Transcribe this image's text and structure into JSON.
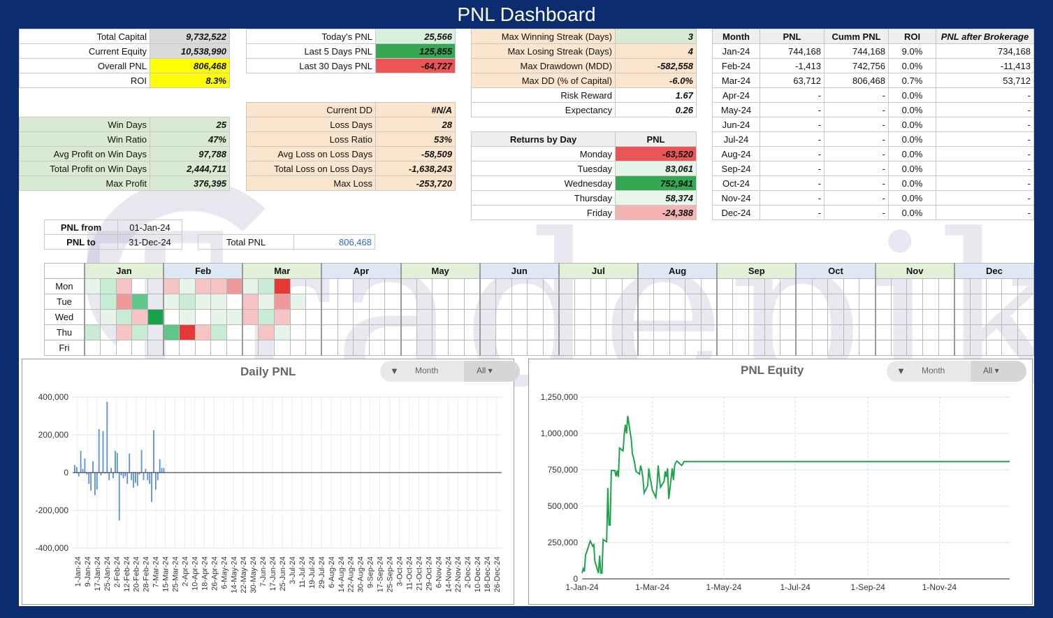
{
  "title": "PNL Dashboard",
  "capital_table": [
    {
      "label": "Total Capital",
      "value": "9,732,522"
    },
    {
      "label": "Current Equity",
      "value": "10,538,990"
    },
    {
      "label": "Overall PNL",
      "value": "806,468"
    },
    {
      "label": "ROI",
      "value": "8.3%"
    }
  ],
  "recent_table": [
    {
      "label": "Today's PNL",
      "value": "25,566"
    },
    {
      "label": "Last 5 Days PNL",
      "value": "125,855"
    },
    {
      "label": "Last 30 Days PNL",
      "value": "-64,727"
    }
  ],
  "streak_table": [
    {
      "label": "Max Winning Streak (Days)",
      "value": "3"
    },
    {
      "label": "Max Losing Streak (Days)",
      "value": "4"
    },
    {
      "label": "Max Drawdown (MDD)",
      "value": "-582,558"
    },
    {
      "label": "Max DD (% of Capital)",
      "value": "-6.0%"
    },
    {
      "label": "Risk Reward",
      "value": "1.67"
    },
    {
      "label": "Expectancy",
      "value": "0.26"
    }
  ],
  "monthly_table": {
    "headers": [
      "Month",
      "PNL",
      "Cumm PNL",
      "ROI",
      "PNL after Brokerage"
    ],
    "rows": [
      [
        "Jan-24",
        "744,168",
        "744,168",
        "9.0%",
        "734,168"
      ],
      [
        "Feb-24",
        "-1,413",
        "742,756",
        "0.0%",
        "-11,413"
      ],
      [
        "Mar-24",
        "63,712",
        "806,468",
        "0.7%",
        "53,712"
      ],
      [
        "Apr-24",
        "-",
        "-",
        "0.0%",
        "-"
      ],
      [
        "May-24",
        "-",
        "-",
        "0.0%",
        "-"
      ],
      [
        "Jun-24",
        "-",
        "-",
        "0.0%",
        "-"
      ],
      [
        "Jul-24",
        "-",
        "-",
        "0.0%",
        "-"
      ],
      [
        "Aug-24",
        "-",
        "-",
        "0.0%",
        "-"
      ],
      [
        "Sep-24",
        "-",
        "-",
        "0.0%",
        "-"
      ],
      [
        "Oct-24",
        "-",
        "-",
        "0.0%",
        "-"
      ],
      [
        "Nov-24",
        "-",
        "-",
        "0.0%",
        "-"
      ],
      [
        "Dec-24",
        "-",
        "-",
        "0.0%",
        "-"
      ]
    ]
  },
  "win_table": [
    {
      "label": "Win Days",
      "value": "25"
    },
    {
      "label": "Win Ratio",
      "value": "47%"
    },
    {
      "label": "Avg Profit on Win Days",
      "value": "97,788"
    },
    {
      "label": "Total Profit on Win Days",
      "value": "2,444,711"
    },
    {
      "label": "Max Profit",
      "value": "376,395"
    }
  ],
  "loss_table": [
    {
      "label": "Current DD",
      "value": "#N/A"
    },
    {
      "label": "Loss Days",
      "value": "28"
    },
    {
      "label": "Loss Ratio",
      "value": "53%"
    },
    {
      "label": "Avg Loss on Loss Days",
      "value": "-58,509"
    },
    {
      "label": "Total Loss on Loss Days",
      "value": "-1,638,243"
    },
    {
      "label": "Max Loss",
      "value": "-253,720"
    }
  ],
  "returns_by_day": {
    "header_label": "Returns by Day",
    "header_value": "PNL",
    "rows": [
      {
        "label": "Monday",
        "value": "-63,520"
      },
      {
        "label": "Tuesday",
        "value": "83,061"
      },
      {
        "label": "Wednesday",
        "value": "752,941"
      },
      {
        "label": "Thursday",
        "value": "58,374"
      },
      {
        "label": "Friday",
        "value": "-24,388"
      }
    ]
  },
  "range": {
    "from_label": "PNL from",
    "from_value": "01-Jan-24",
    "to_label": "PNL to",
    "to_value": "31-Dec-24",
    "total_label": "Total PNL",
    "total_value": "806,468"
  },
  "heatmap": {
    "months": [
      "Jan",
      "Feb",
      "Mar",
      "Apr",
      "May",
      "Jun",
      "Jul",
      "Aug",
      "Sep",
      "Oct",
      "Nov",
      "Dec"
    ],
    "days": [
      "Mon",
      "Tue",
      "Wed",
      "Thu",
      "Fri"
    ],
    "colors": {
      "strong_green": "#16a34a",
      "green": "#5fc78a",
      "light_green": "#c8ebd3",
      "pale_green": "#e6f4ea",
      "light_red": "#f6c4c4",
      "red": "#ef9a9a",
      "strong_red": "#e53935"
    },
    "cells": {
      "Jan": [
        [
          "pale_green",
          "light_green",
          "light_red",
          "",
          ""
        ],
        [
          "",
          "light_green",
          "red",
          "green",
          ""
        ],
        [
          "",
          "pale_green",
          "light_green",
          "light_red",
          "strong_green"
        ],
        [
          "light_green",
          "",
          "light_red",
          "light_green",
          ""
        ],
        [
          "",
          "",
          "",
          "",
          ""
        ]
      ],
      "Feb": [
        [
          "light_red",
          "pale_green",
          "light_red",
          "light_red",
          "red"
        ],
        [
          "pale_green",
          "light_green",
          "pale_green",
          "pale_green",
          ""
        ],
        [
          "",
          "pale_green",
          "",
          "pale_green",
          "pale_green"
        ],
        [
          "green",
          "strong_red",
          "light_red",
          "light_green",
          ""
        ],
        [
          "",
          "",
          "",
          "",
          ""
        ]
      ],
      "Mar": [
        [
          "pale_green",
          "light_green",
          "strong_red",
          ""
        ],
        [
          "light_red",
          "pale_green",
          "red",
          "pale_green"
        ],
        [
          "light_red",
          "light_green",
          "light_red",
          ""
        ],
        [
          "",
          "light_red",
          "pale_green",
          ""
        ],
        [
          "",
          "",
          "",
          ""
        ]
      ]
    }
  },
  "daily_chart": {
    "title": "Daily PNL",
    "filter_label": "Month",
    "filter_value": "All",
    "filter_icon": "filter-icon",
    "chart_data": {
      "type": "bar",
      "title": "Daily PNL",
      "ylim": [
        -400000,
        400000
      ],
      "yticks": [
        "400,000",
        "200,000",
        "0",
        "-200,000",
        "-400,000"
      ],
      "xticks": [
        "1-Jan-24",
        "9-Jan-24",
        "17-Jan-24",
        "25-Jan-24",
        "2-Feb-24",
        "12-Feb-24",
        "20-Feb-24",
        "28-Feb-24",
        "7-Mar-24",
        "15-Mar-24",
        "25-Mar-24",
        "2-Apr-24",
        "10-Apr-24",
        "18-Apr-24",
        "26-Apr-24",
        "6-May-24",
        "14-May-24",
        "22-May-24",
        "30-May-24",
        "7-Jun-24",
        "17-Jun-24",
        "25-Jun-24",
        "3-Jul-24",
        "11-Jul-24",
        "19-Jul-24",
        "29-Jul-24",
        "6-Aug-24",
        "14-Aug-24",
        "22-Aug-24",
        "30-Aug-24",
        "9-Sep-24",
        "17-Sep-24",
        "25-Sep-24",
        "3-Oct-24",
        "11-Oct-24",
        "21-Oct-24",
        "29-Oct-24",
        "6-Nov-24",
        "14-Nov-24",
        "22-Nov-24",
        "2-Dec-24",
        "10-Dec-24",
        "18-Dec-24",
        "26-Dec-24"
      ],
      "values": [
        40000,
        30000,
        -20000,
        115000,
        20000,
        75000,
        -10000,
        -60000,
        -95000,
        60000,
        -120000,
        -90000,
        230000,
        -15000,
        220000,
        -5000,
        375000,
        -40000,
        25000,
        -30000,
        115000,
        105000,
        -253720,
        -15000,
        -30000,
        -20000,
        -60000,
        100000,
        -40000,
        -80000,
        -55000,
        -70000,
        -10000,
        120000,
        -40000,
        20000,
        -40000,
        -60000,
        -155000,
        225000,
        -90000,
        -40000,
        70000,
        25000,
        25000
      ]
    }
  },
  "equity_chart": {
    "title": "PNL Equity",
    "filter_label": "Month",
    "filter_value": "All",
    "filter_icon": "filter-icon",
    "chart_data": {
      "type": "line",
      "title": "PNL Equity",
      "ylim": [
        0,
        1250000
      ],
      "yticks": [
        "1,250,000",
        "1,000,000",
        "750,000",
        "500,000",
        "250,000",
        "0"
      ],
      "xticks": [
        "1-Jan-24",
        "1-Mar-24",
        "1-May-24",
        "1-Jul-24",
        "1-Sep-24",
        "1-Nov-24"
      ],
      "x": [
        "2024-01-01",
        "2024-01-02",
        "2024-01-03",
        "2024-01-04",
        "2024-01-05",
        "2024-01-08",
        "2024-01-09",
        "2024-01-10",
        "2024-01-11",
        "2024-01-12",
        "2024-01-15",
        "2024-01-16",
        "2024-01-17",
        "2024-01-18",
        "2024-01-19",
        "2024-01-22",
        "2024-01-23",
        "2024-01-24",
        "2024-01-25",
        "2024-01-26",
        "2024-01-29",
        "2024-01-30",
        "2024-01-31",
        "2024-02-01",
        "2024-02-02",
        "2024-02-05",
        "2024-02-06",
        "2024-02-07",
        "2024-02-08",
        "2024-02-09",
        "2024-02-12",
        "2024-02-13",
        "2024-02-14",
        "2024-02-15",
        "2024-02-16",
        "2024-02-19",
        "2024-02-20",
        "2024-02-21",
        "2024-02-22",
        "2024-02-23",
        "2024-02-26",
        "2024-02-27",
        "2024-02-28",
        "2024-02-29",
        "2024-03-01",
        "2024-03-04",
        "2024-03-05",
        "2024-03-06",
        "2024-03-07",
        "2024-03-08",
        "2024-03-11",
        "2024-03-12",
        "2024-03-13",
        "2024-03-14",
        "2024-03-15",
        "2024-03-18",
        "2024-03-19",
        "2024-03-20",
        "2024-03-21",
        "2024-03-22",
        "2024-03-26",
        "2024-03-27",
        "2024-03-28",
        "2024-12-31"
      ],
      "values": [
        40000,
        70000,
        50000,
        165000,
        185000,
        260000,
        245000,
        225000,
        235000,
        120000,
        40000,
        160000,
        40000,
        40000,
        270000,
        255000,
        625000,
        370000,
        370000,
        745000,
        745000,
        705000,
        745000,
        700000,
        900000,
        880000,
        995000,
        1060000,
        1000000,
        1120000,
        960000,
        860000,
        830000,
        790000,
        740000,
        720000,
        780000,
        745000,
        690000,
        590000,
        640000,
        760000,
        700000,
        660000,
        610000,
        560000,
        640000,
        780000,
        690000,
        630000,
        670000,
        740000,
        700000,
        760000,
        550000,
        760000,
        680000,
        780000,
        800000,
        810000,
        780000,
        790000,
        806468,
        806468
      ]
    }
  }
}
